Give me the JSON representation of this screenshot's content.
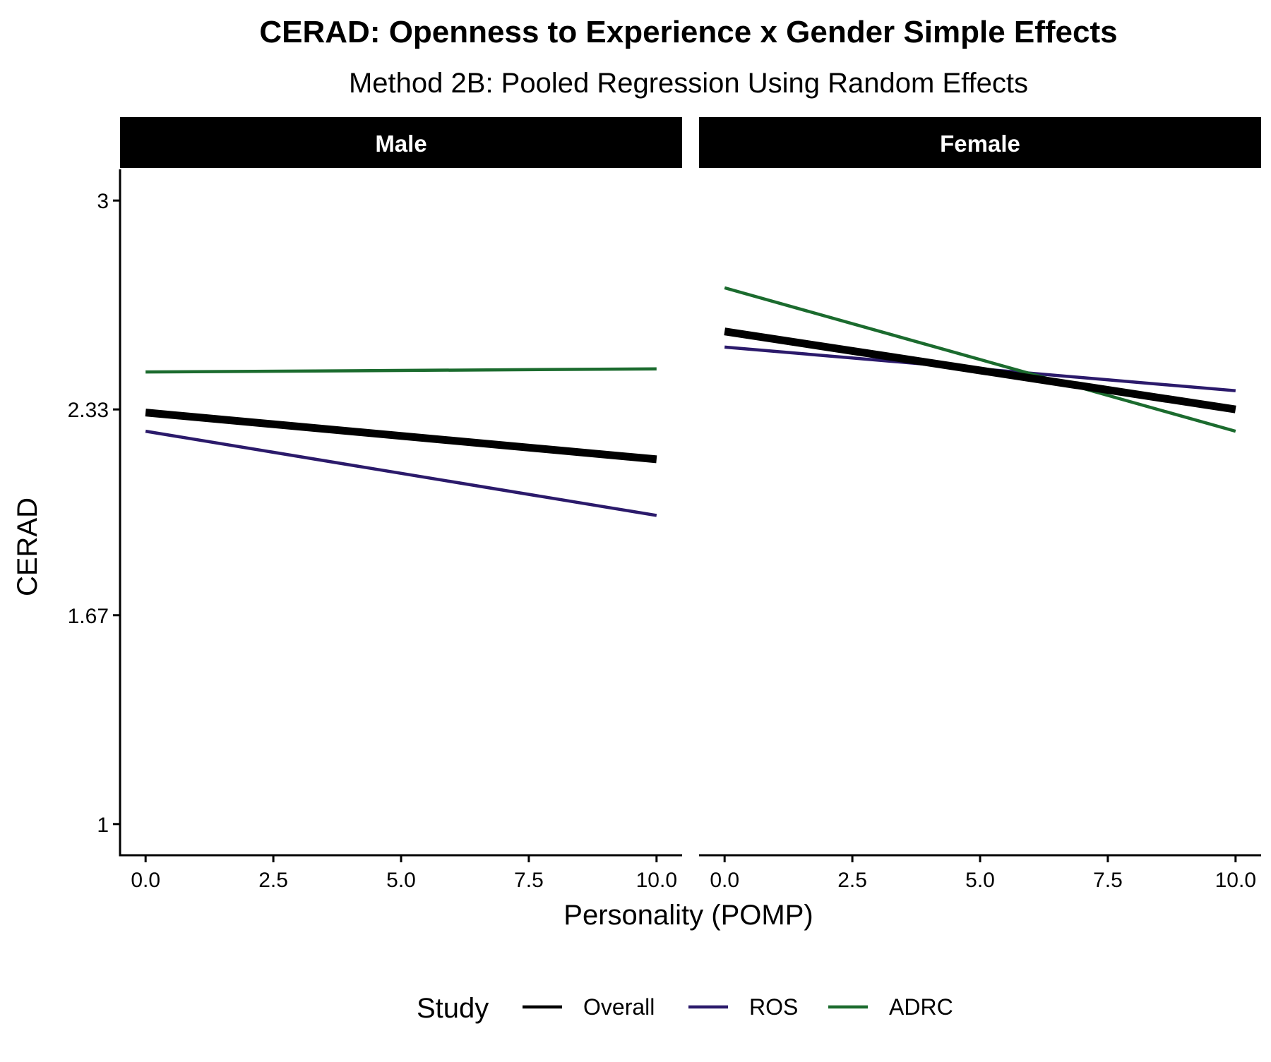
{
  "chart_data": {
    "type": "line",
    "title": "CERAD: Openness to Experience x Gender Simple Effects",
    "subtitle": "Method 2B: Pooled Regression Using Random Effects",
    "xlabel": "Personality (POMP)",
    "ylabel": "CERAD",
    "xlim": [
      -0.5,
      10.5
    ],
    "ylim": [
      0.9,
      3.1
    ],
    "x_ticks": [
      0.0,
      2.5,
      5.0,
      7.5,
      10.0
    ],
    "x_tick_labels": [
      "0.0",
      "2.5",
      "5.0",
      "7.5",
      "10.0"
    ],
    "y_ticks": [
      1.0,
      1.67,
      2.33,
      3.0
    ],
    "y_tick_labels": [
      "1",
      "1.67",
      "2.33",
      "3"
    ],
    "grid": false,
    "legend": {
      "title": "Study",
      "position": "bottom",
      "entries": [
        "Overall",
        "ROS",
        "ADRC"
      ]
    },
    "colors": {
      "Overall": "#000000",
      "ROS": "#2b1a6b",
      "ADRC": "#1b6b2e",
      "strip_bg": "#000000",
      "strip_text": "#ffffff"
    },
    "panels": [
      {
        "label": "Male",
        "series": [
          {
            "name": "Overall",
            "x": [
              0,
              10
            ],
            "y": [
              2.32,
              2.17
            ]
          },
          {
            "name": "ROS",
            "x": [
              0,
              10
            ],
            "y": [
              2.26,
              1.99
            ]
          },
          {
            "name": "ADRC",
            "x": [
              0,
              10
            ],
            "y": [
              2.45,
              2.46
            ]
          }
        ]
      },
      {
        "label": "Female",
        "series": [
          {
            "name": "Overall",
            "x": [
              0,
              10
            ],
            "y": [
              2.58,
              2.33
            ]
          },
          {
            "name": "ROS",
            "x": [
              0,
              10
            ],
            "y": [
              2.53,
              2.39
            ]
          },
          {
            "name": "ADRC",
            "x": [
              0,
              10
            ],
            "y": [
              2.72,
              2.26
            ]
          }
        ]
      }
    ]
  }
}
